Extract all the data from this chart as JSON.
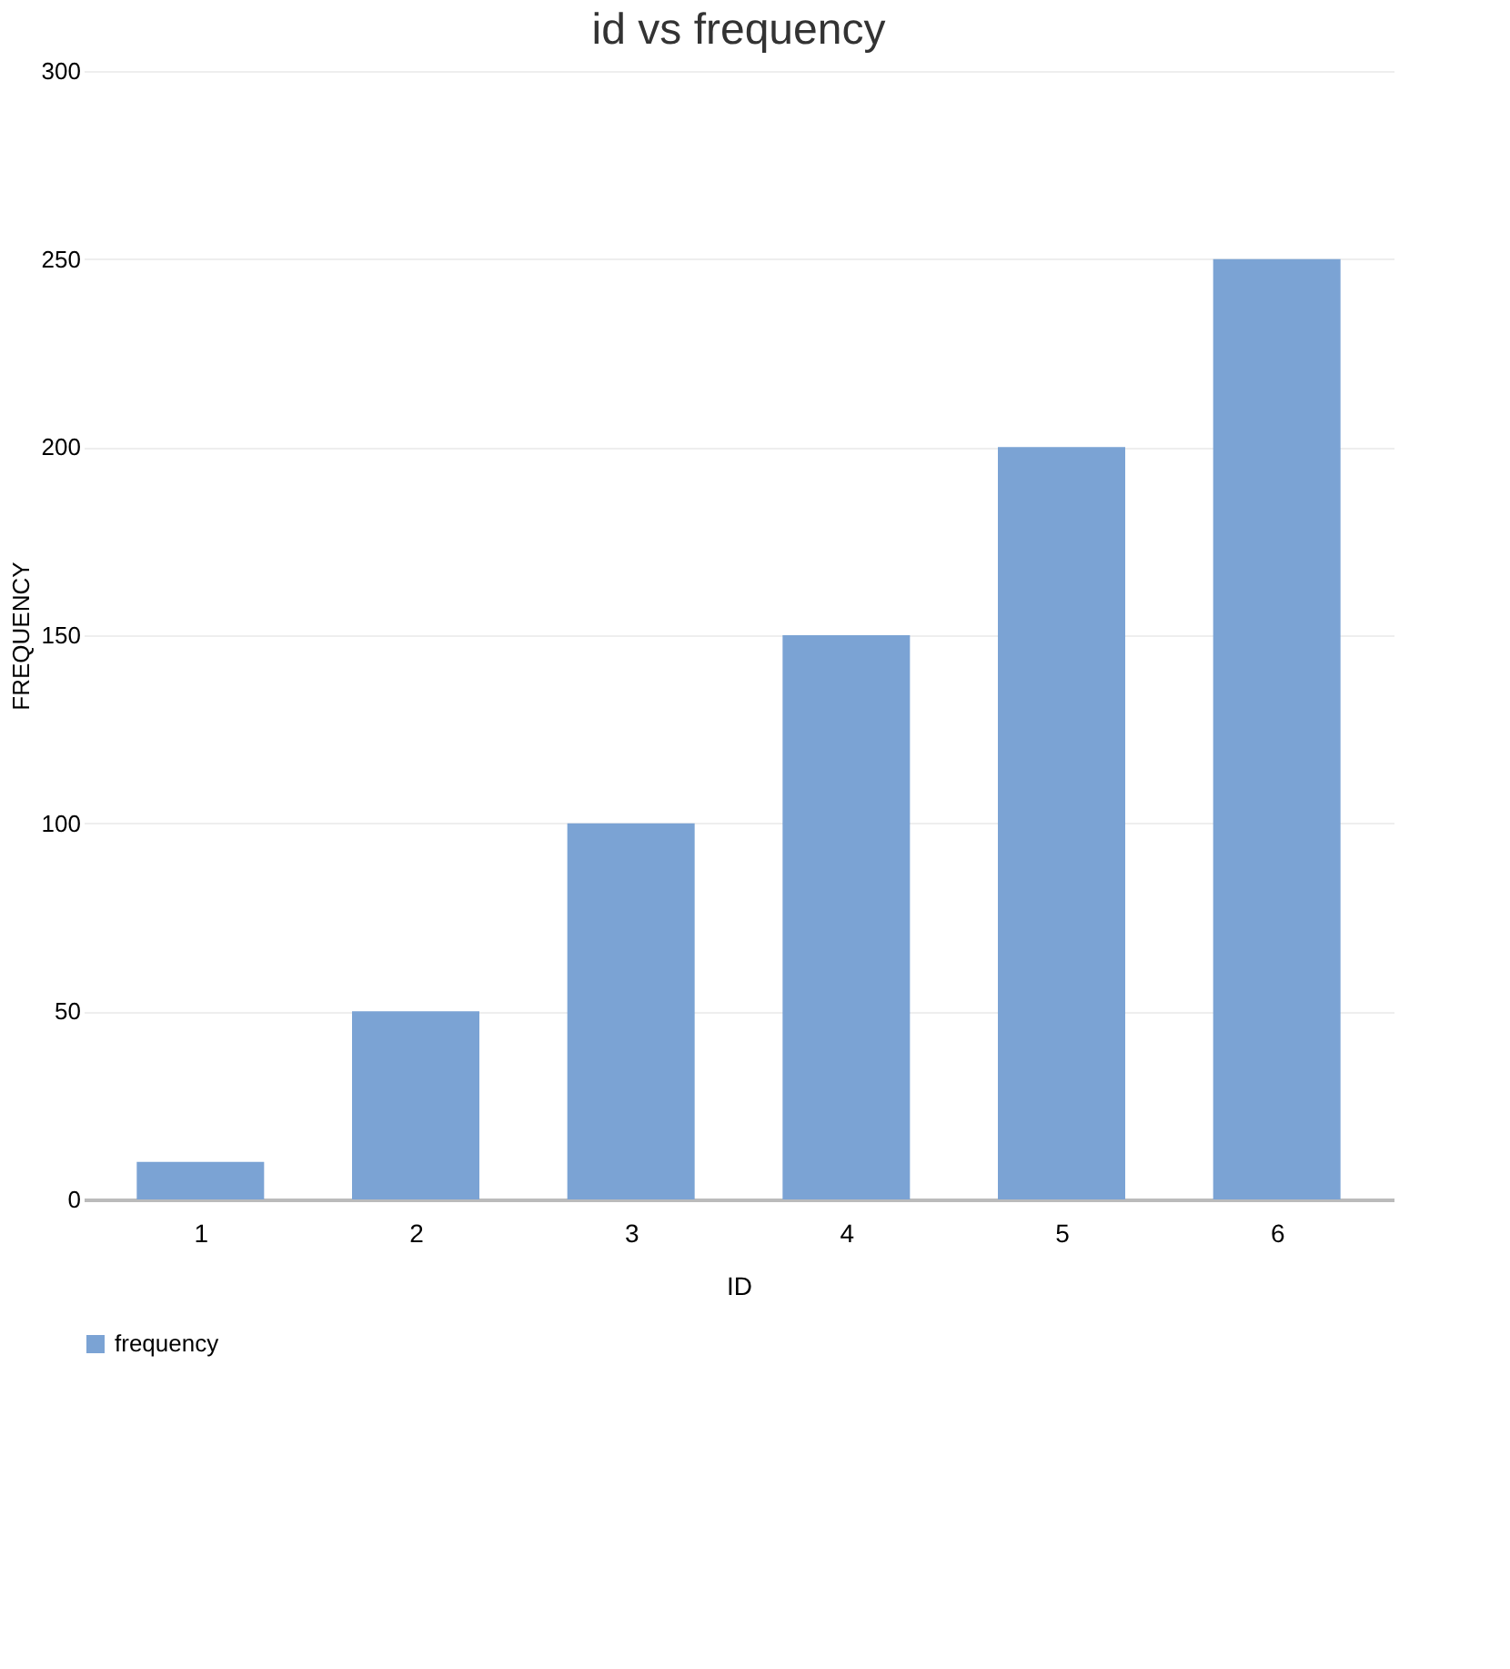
{
  "chart_data": {
    "type": "bar",
    "title": "id vs frequency",
    "xlabel": "ID",
    "ylabel": "FREQUENCY",
    "categories": [
      "1",
      "2",
      "3",
      "4",
      "5",
      "6"
    ],
    "series": [
      {
        "name": "frequency",
        "color": "#7ba3d4",
        "values": [
          10,
          50,
          100,
          150,
          200,
          250
        ]
      }
    ],
    "ylim": [
      0,
      300
    ],
    "yticks": [
      0,
      50,
      100,
      150,
      200,
      250,
      300
    ],
    "grid": "y",
    "legend": "bottom"
  }
}
